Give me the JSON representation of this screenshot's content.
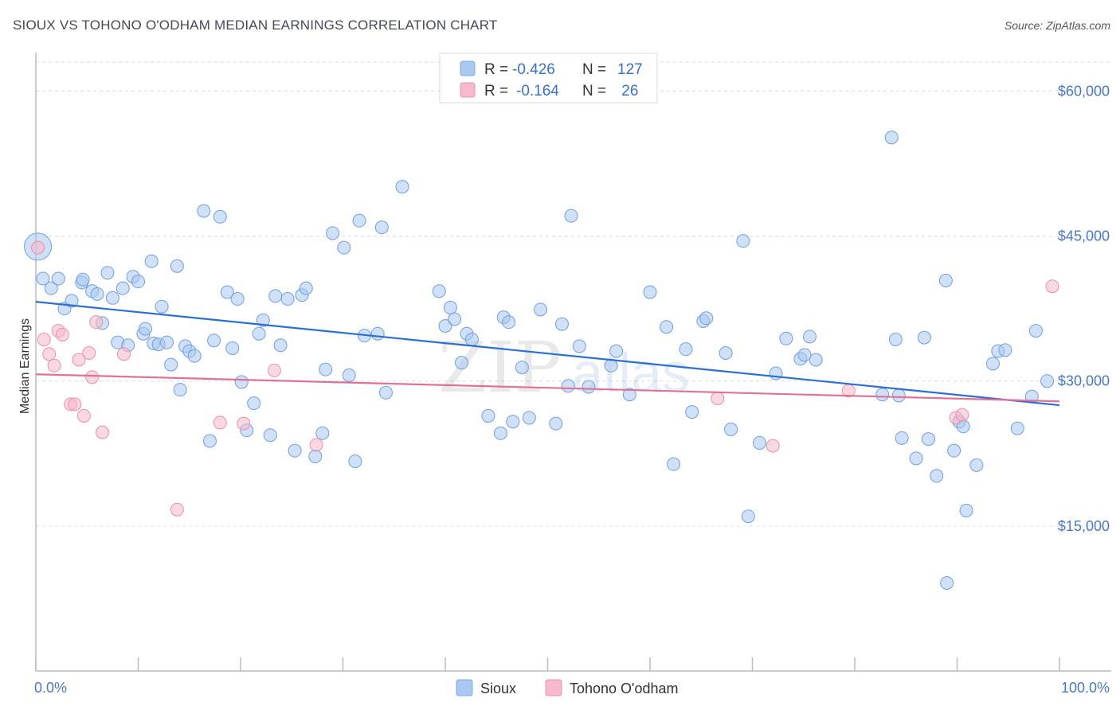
{
  "title": "SIOUX VS TOHONO O'ODHAM MEDIAN EARNINGS CORRELATION CHART",
  "source": "Source: ZipAtlas.com",
  "watermark": {
    "zip": "ZIP",
    "atlas": "atlas"
  },
  "legend": {
    "rows": [
      {
        "r_label": "R =",
        "r_value": "-0.426",
        "n_label": "N =",
        "n_value": "127",
        "color": "#a9c8f0"
      },
      {
        "r_label": "R =",
        "r_value": "-0.164",
        "n_label": "N =",
        "n_value": " 26",
        "color": "#f6b8cb"
      }
    ]
  },
  "bottom_legend": [
    "Sioux",
    "Tohono O'odham"
  ],
  "chart_data": {
    "type": "scatter",
    "title": "SIOUX VS TOHONO O'ODHAM MEDIAN EARNINGS CORRELATION CHART",
    "xlabel": "",
    "ylabel": "Median Earnings",
    "xlim": [
      0,
      100
    ],
    "ylim": [
      0,
      63000
    ],
    "x_tick_labels": [
      "0.0%",
      "100.0%"
    ],
    "y_ticks": [
      15000,
      30000,
      45000,
      60000
    ],
    "y_tick_labels": [
      "$15,000",
      "$30,000",
      "$45,000",
      "$60,000"
    ],
    "grid": true,
    "legend_position": "top-center",
    "colors": {
      "Sioux": "#a9c8f0",
      "Tohono O'odham": "#f6b8cb",
      "Sioux_line": "#2b6fd0",
      "Tohono_line": "#e0719a"
    },
    "series": [
      {
        "name": "Sioux",
        "trend": {
          "x": [
            0,
            100
          ],
          "y": [
            38200,
            27500
          ]
        },
        "points": [
          [
            0.2,
            43900
          ],
          [
            0.7,
            40600
          ],
          [
            1.5,
            39600
          ],
          [
            2.2,
            40600
          ],
          [
            2.8,
            37500
          ],
          [
            3.5,
            38300
          ],
          [
            4.5,
            40200
          ],
          [
            4.6,
            40500
          ],
          [
            5.5,
            39300
          ],
          [
            6.0,
            39000
          ],
          [
            6.5,
            36000
          ],
          [
            7.0,
            41200
          ],
          [
            7.5,
            38600
          ],
          [
            8.0,
            34000
          ],
          [
            8.5,
            39600
          ],
          [
            9.0,
            33700
          ],
          [
            9.5,
            40800
          ],
          [
            10.0,
            40300
          ],
          [
            10.5,
            34900
          ],
          [
            10.7,
            35400
          ],
          [
            11.5,
            33900
          ],
          [
            11.3,
            42400
          ],
          [
            12.0,
            33800
          ],
          [
            12.3,
            37700
          ],
          [
            12.8,
            34000
          ],
          [
            13.2,
            31700
          ],
          [
            13.8,
            41900
          ],
          [
            14.1,
            29100
          ],
          [
            14.6,
            33600
          ],
          [
            15.0,
            33100
          ],
          [
            15.5,
            32600
          ],
          [
            16.4,
            47600
          ],
          [
            17.0,
            23800
          ],
          [
            17.4,
            34200
          ],
          [
            18.0,
            47000
          ],
          [
            18.7,
            39200
          ],
          [
            19.2,
            33400
          ],
          [
            19.7,
            38500
          ],
          [
            20.1,
            29900
          ],
          [
            20.6,
            24900
          ],
          [
            21.3,
            27700
          ],
          [
            21.8,
            34900
          ],
          [
            22.2,
            36300
          ],
          [
            22.9,
            24400
          ],
          [
            23.4,
            38800
          ],
          [
            23.9,
            33700
          ],
          [
            24.6,
            38500
          ],
          [
            25.3,
            22800
          ],
          [
            26.0,
            38900
          ],
          [
            26.4,
            39600
          ],
          [
            27.3,
            22200
          ],
          [
            28.0,
            24600
          ],
          [
            28.3,
            31200
          ],
          [
            29.0,
            45300
          ],
          [
            30.1,
            43800
          ],
          [
            30.6,
            30600
          ],
          [
            31.2,
            21700
          ],
          [
            31.6,
            46600
          ],
          [
            32.1,
            34700
          ],
          [
            33.4,
            34900
          ],
          [
            33.8,
            45900
          ],
          [
            34.2,
            28800
          ],
          [
            35.8,
            50100
          ],
          [
            39.4,
            39300
          ],
          [
            40.0,
            35700
          ],
          [
            40.5,
            37600
          ],
          [
            40.9,
            36400
          ],
          [
            41.6,
            31900
          ],
          [
            42.1,
            34900
          ],
          [
            42.6,
            34300
          ],
          [
            44.2,
            26400
          ],
          [
            45.4,
            24600
          ],
          [
            45.7,
            36600
          ],
          [
            46.2,
            36100
          ],
          [
            46.6,
            25800
          ],
          [
            47.5,
            31400
          ],
          [
            48.2,
            26200
          ],
          [
            49.3,
            37400
          ],
          [
            50.8,
            25600
          ],
          [
            51.4,
            35900
          ],
          [
            52.0,
            29500
          ],
          [
            52.3,
            47100
          ],
          [
            53.1,
            33600
          ],
          [
            54.0,
            29400
          ],
          [
            56.2,
            31600
          ],
          [
            56.7,
            33100
          ],
          [
            58.0,
            28600
          ],
          [
            60.0,
            39200
          ],
          [
            61.6,
            35600
          ],
          [
            62.3,
            21400
          ],
          [
            63.5,
            33300
          ],
          [
            64.1,
            26800
          ],
          [
            65.2,
            36200
          ],
          [
            65.5,
            36500
          ],
          [
            67.4,
            32900
          ],
          [
            67.9,
            25000
          ],
          [
            69.1,
            44500
          ],
          [
            69.6,
            16000
          ],
          [
            70.7,
            23600
          ],
          [
            72.3,
            30800
          ],
          [
            73.3,
            34400
          ],
          [
            74.7,
            32300
          ],
          [
            75.1,
            32700
          ],
          [
            75.6,
            34600
          ],
          [
            76.2,
            32200
          ],
          [
            82.7,
            28600
          ],
          [
            83.6,
            55200
          ],
          [
            84.0,
            34300
          ],
          [
            84.3,
            28500
          ],
          [
            84.6,
            24100
          ],
          [
            86.0,
            22000
          ],
          [
            86.8,
            34500
          ],
          [
            87.2,
            24000
          ],
          [
            88.0,
            20200
          ],
          [
            88.9,
            40400
          ],
          [
            89.0,
            9100
          ],
          [
            89.7,
            22800
          ],
          [
            90.2,
            25800
          ],
          [
            90.6,
            25300
          ],
          [
            90.9,
            16600
          ],
          [
            91.9,
            21300
          ],
          [
            93.5,
            31800
          ],
          [
            94.0,
            33100
          ],
          [
            94.7,
            33200
          ],
          [
            95.9,
            25100
          ],
          [
            97.3,
            28400
          ],
          [
            97.7,
            35200
          ],
          [
            98.8,
            30000
          ]
        ]
      },
      {
        "name": "Tohono O'odham",
        "trend": {
          "x": [
            0,
            100
          ],
          "y": [
            30700,
            27900
          ]
        },
        "points": [
          [
            0.2,
            43800
          ],
          [
            0.8,
            34300
          ],
          [
            1.3,
            32800
          ],
          [
            1.8,
            31600
          ],
          [
            2.2,
            35200
          ],
          [
            2.6,
            34800
          ],
          [
            3.4,
            27600
          ],
          [
            3.8,
            27600
          ],
          [
            4.2,
            32200
          ],
          [
            4.7,
            26400
          ],
          [
            5.2,
            32900
          ],
          [
            5.5,
            30400
          ],
          [
            5.9,
            36100
          ],
          [
            6.5,
            24700
          ],
          [
            8.6,
            32800
          ],
          [
            13.8,
            16700
          ],
          [
            18.0,
            25700
          ],
          [
            20.3,
            25600
          ],
          [
            23.3,
            31100
          ],
          [
            27.4,
            23400
          ],
          [
            66.6,
            28200
          ],
          [
            72.0,
            23300
          ],
          [
            79.4,
            29000
          ],
          [
            89.9,
            26200
          ],
          [
            90.5,
            26500
          ],
          [
            99.3,
            39800
          ]
        ]
      }
    ]
  }
}
